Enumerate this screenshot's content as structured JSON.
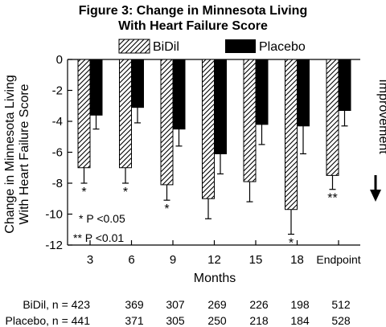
{
  "chart_data": {
    "type": "bar",
    "title_lines": [
      "Figure 3: Change in Minnesota Living",
      "With Heart Failure Score"
    ],
    "xlabel": "Months",
    "ylabel_lines": [
      "Change in Minnesota Living",
      "With Heart Failure Score"
    ],
    "ylim": [
      -12,
      0
    ],
    "yticks": [
      "0",
      "-2",
      "-4",
      "-6",
      "-8",
      "-10",
      "-12"
    ],
    "ytick_values": [
      0,
      -2,
      -4,
      -6,
      -8,
      -10,
      -12
    ],
    "categories": [
      "3",
      "6",
      "9",
      "12",
      "15",
      "18",
      "Endpoint"
    ],
    "series": [
      {
        "name": "BiDil",
        "pattern": "hatched",
        "values": [
          -7.0,
          -7.0,
          -8.1,
          -9.0,
          -7.9,
          -9.7,
          -7.5
        ],
        "error": [
          1.0,
          1.0,
          1.0,
          1.3,
          1.3,
          1.6,
          0.9
        ],
        "significance": [
          "*",
          "*",
          "*",
          "",
          "",
          "*",
          "**"
        ]
      },
      {
        "name": "Placebo",
        "color": "#000000",
        "values": [
          -3.6,
          -3.1,
          -4.5,
          -6.1,
          -4.2,
          -4.3,
          -3.3
        ],
        "error": [
          0.9,
          1.0,
          1.1,
          1.3,
          1.3,
          1.8,
          1.0
        ]
      }
    ],
    "annotations": {
      "improvement_label": "Improvement",
      "sig_notes": [
        "* P <0.05",
        "** P <0.01"
      ]
    },
    "legend_position": "top",
    "grid": false
  },
  "counts": {
    "rows": [
      {
        "label": "BiDil, n = 423",
        "values": [
          "369",
          "307",
          "269",
          "226",
          "198",
          "512"
        ]
      },
      {
        "label": "Placebo, n = 441",
        "values": [
          "371",
          "305",
          "250",
          "218",
          "184",
          "528"
        ]
      }
    ]
  }
}
